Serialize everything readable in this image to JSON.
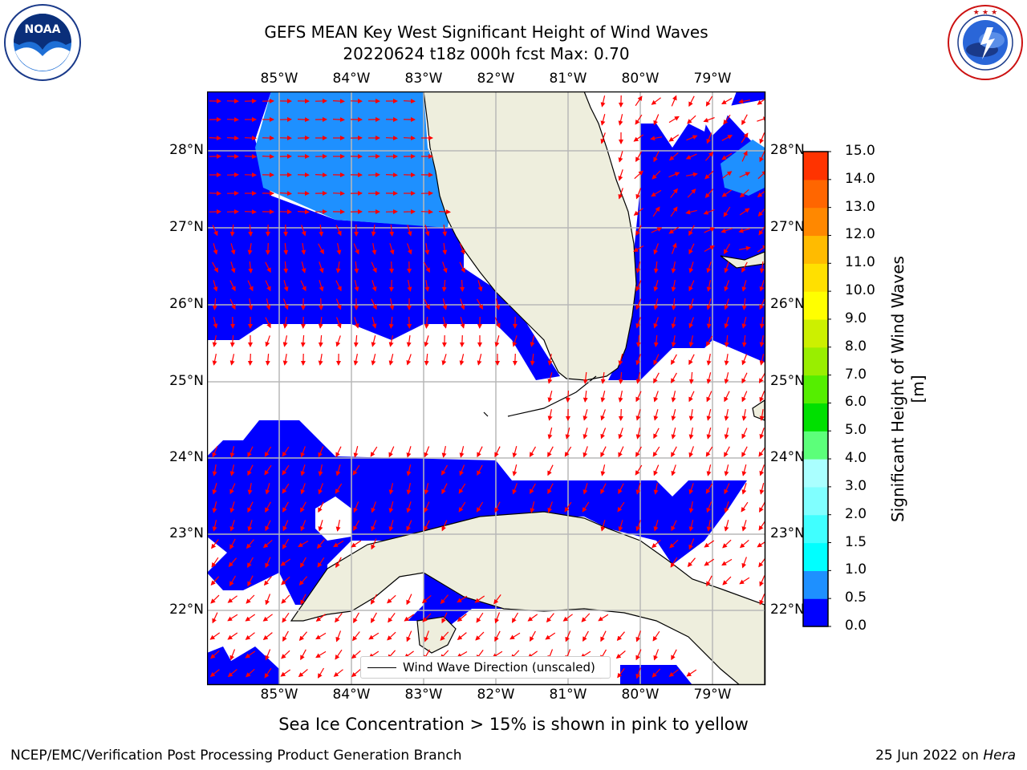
{
  "title_line1": "GEFS MEAN Key West Significant Height of Wind Waves",
  "title_line2": "20220624 t18z 000h fcst   Max: 0.70",
  "logos": {
    "noaa_text": "NOAA",
    "noaa_ring": "NATIONAL OCEANIC AND ATMOSPHERIC ADMINISTRATION · U.S. DEPARTMENT OF COMMERCE",
    "nws_ring": "NATIONAL WEATHER SERVICE"
  },
  "map": {
    "lon_labels": [
      "85°W",
      "84°W",
      "83°W",
      "82°W",
      "81°W",
      "80°W",
      "79°W"
    ],
    "lat_labels": [
      "28°N",
      "27°N",
      "26°N",
      "25°N",
      "24°N",
      "23°N",
      "22°N"
    ],
    "land_color": "#eeeedd",
    "wave_color_0": "#0000ff",
    "wave_color_1": "#1e90ff",
    "arrow_color": "#ff0000"
  },
  "legend": {
    "label": "Wind Wave Direction (unscaled)"
  },
  "colorbar": {
    "label": "Significant Height of Wind Waves [m]",
    "ticks": [
      "0.0",
      "0.5",
      "1.0",
      "1.5",
      "2.0",
      "3.0",
      "4.0",
      "5.0",
      "6.0",
      "7.0",
      "8.0",
      "9.0",
      "10.0",
      "11.0",
      "12.0",
      "13.0",
      "14.0",
      "15.0"
    ],
    "colors": [
      "#0000ff",
      "#1e90ff",
      "#00ffff",
      "#40ffff",
      "#80ffff",
      "#aaffff",
      "#5cff7a",
      "#00e000",
      "#55ee00",
      "#99ee00",
      "#ccf000",
      "#ffff00",
      "#ffe000",
      "#ffbb00",
      "#ff8800",
      "#ff6600",
      "#ff3300",
      "#ff0000"
    ]
  },
  "ice_note": "Sea Ice Concentration > 15% is shown in pink to yellow",
  "footer_left": "NCEP/EMC/Verification Post Processing Product Generation Branch",
  "footer_date": "25 Jun 2022 on ",
  "footer_host": "Hera"
}
